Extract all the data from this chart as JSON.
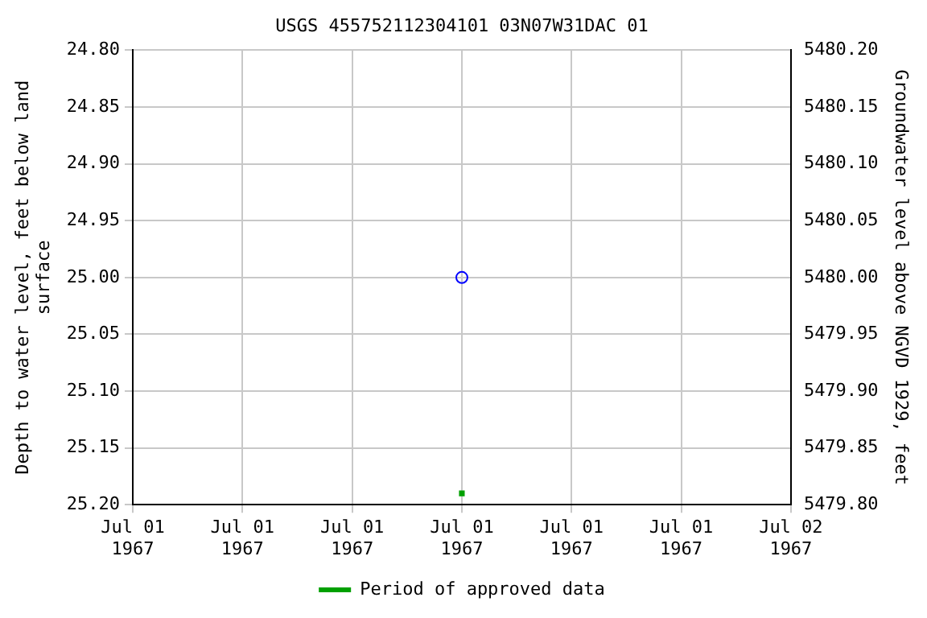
{
  "chart_data": {
    "type": "scatter",
    "title": "USGS 455752112304101 03N07W31DAC 01",
    "ylabel": "Depth to water level, feet below land surface",
    "y2label": "Groundwater level above NGVD 1929, feet",
    "x": [
      "1967-07-01T12:00"
    ],
    "series": [
      {
        "color": "#0000ff",
        "values": [
          25.0
        ],
        "marker": "circle"
      },
      {
        "name": "Period of approved data",
        "color": "#00a000",
        "values": [
          25.19
        ],
        "marker": "square"
      }
    ],
    "xlim": [
      "1967-07-01T00:00",
      "1967-07-02T00:00"
    ],
    "xticks": [
      {
        "value": "1967-07-01T00:00",
        "label": "Jul 01\n1967"
      },
      {
        "value": "1967-07-01T04:00",
        "label": "Jul 01\n1967"
      },
      {
        "value": "1967-07-01T08:00",
        "label": "Jul 01\n1967"
      },
      {
        "value": "1967-07-01T12:00",
        "label": "Jul 01\n1967"
      },
      {
        "value": "1967-07-01T16:00",
        "label": "Jul 01\n1967"
      },
      {
        "value": "1967-07-01T20:00",
        "label": "Jul 01\n1967"
      },
      {
        "value": "1967-07-02T00:00",
        "label": "Jul 02\n1967"
      }
    ],
    "ylim": [
      25.2,
      24.8
    ],
    "yticks": [
      {
        "value": 24.8,
        "label": "24.80"
      },
      {
        "value": 24.85,
        "label": "24.85"
      },
      {
        "value": 24.9,
        "label": "24.90"
      },
      {
        "value": 24.95,
        "label": "24.95"
      },
      {
        "value": 25.0,
        "label": "25.00"
      },
      {
        "value": 25.05,
        "label": "25.05"
      },
      {
        "value": 25.1,
        "label": "25.10"
      },
      {
        "value": 25.15,
        "label": "25.15"
      },
      {
        "value": 25.2,
        "label": "25.20"
      }
    ],
    "y2lim": [
      5479.8,
      5480.2
    ],
    "y2ticks": [
      {
        "value": 5479.8,
        "label": "5479.80"
      },
      {
        "value": 5479.85,
        "label": "5479.85"
      },
      {
        "value": 5479.9,
        "label": "5479.90"
      },
      {
        "value": 5479.95,
        "label": "5479.95"
      },
      {
        "value": 5480.0,
        "label": "5480.00"
      },
      {
        "value": 5480.05,
        "label": "5480.05"
      },
      {
        "value": 5480.1,
        "label": "5480.10"
      },
      {
        "value": 5480.15,
        "label": "5480.15"
      },
      {
        "value": 5480.2,
        "label": "5480.20"
      }
    ],
    "grid": true,
    "legend": "bottom"
  }
}
